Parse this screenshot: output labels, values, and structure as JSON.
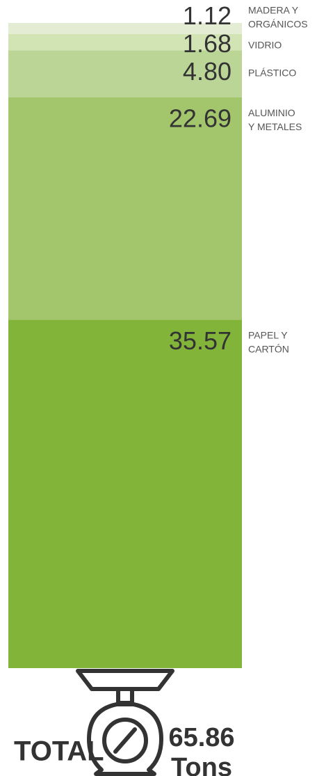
{
  "chart_data": {
    "type": "stacked_bar",
    "categories": [
      [
        "MADERA Y",
        "ORGÁNICOS"
      ],
      [
        "VIDRIO"
      ],
      [
        "PLÁSTICO"
      ],
      [
        "ALUMINIO",
        "Y METALES"
      ],
      [
        "PAPEL Y",
        "CARTÓN"
      ]
    ],
    "values": [
      1.12,
      1.68,
      4.8,
      22.69,
      35.57
    ],
    "value_labels": [
      "1.12",
      "1.68",
      "4.80",
      "22.69",
      "35.57"
    ],
    "colors": [
      "#e4edd3",
      "#d2e3b4",
      "#bbd597",
      "#a3c66c",
      "#83b43a"
    ],
    "total": {
      "label": "TOTAL",
      "value": 65.86,
      "unit": "Tons"
    }
  }
}
